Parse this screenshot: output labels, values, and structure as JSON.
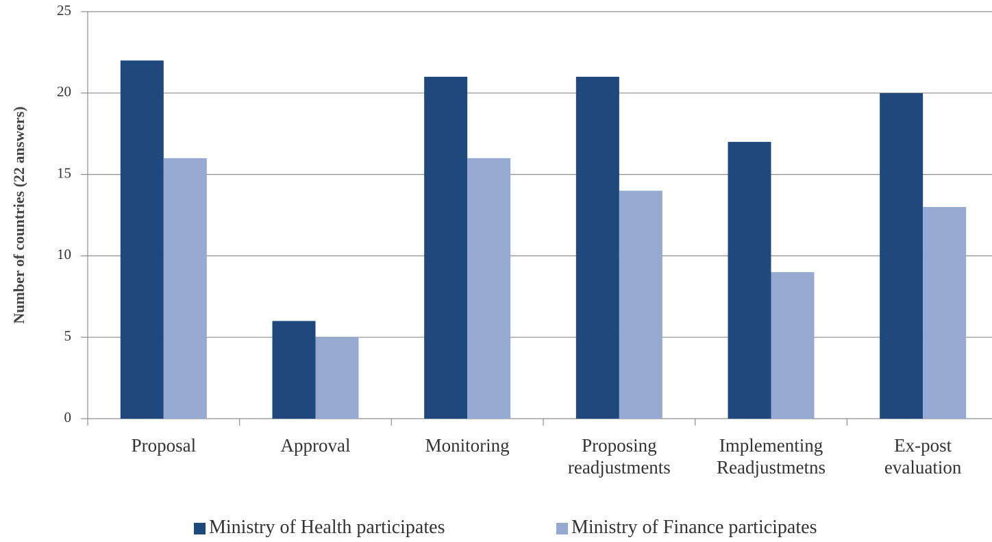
{
  "chart_data": {
    "type": "bar",
    "y_label": "Number of countries (22 answers)",
    "categories": [
      "Proposal",
      "Approval",
      "Monitoring",
      "Proposing readjustments",
      "Implementing Readjustmetns",
      "Ex-post evaluation"
    ],
    "series": [
      {
        "name": "Ministry of Health participates",
        "color": "#1f497d",
        "values": [
          22,
          6,
          21,
          21,
          17,
          20
        ]
      },
      {
        "name": "Ministry of Finance participates",
        "color": "#95a9d1",
        "values": [
          16,
          5,
          16,
          14,
          9,
          13
        ]
      }
    ],
    "ylim": [
      0,
      25
    ],
    "yticks": [
      0,
      5,
      10,
      15,
      20,
      25
    ],
    "grid": true
  }
}
